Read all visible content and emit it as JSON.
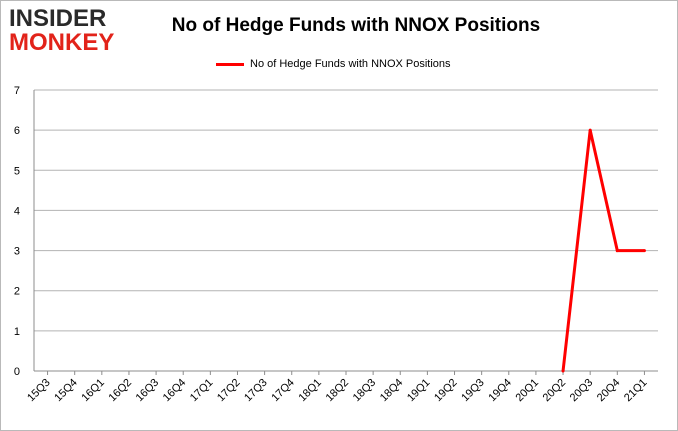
{
  "logo": {
    "line1": "INSIDER",
    "line2": "MONKEY"
  },
  "chart_data": {
    "type": "line",
    "title": "No of Hedge Funds with NNOX Positions",
    "xlabel": "",
    "ylabel": "",
    "categories": [
      "15Q3",
      "15Q4",
      "16Q1",
      "16Q2",
      "16Q3",
      "16Q4",
      "17Q1",
      "17Q2",
      "17Q3",
      "17Q4",
      "18Q1",
      "18Q2",
      "18Q3",
      "18Q4",
      "19Q1",
      "19Q2",
      "19Q3",
      "19Q4",
      "20Q1",
      "20Q2",
      "20Q3",
      "20Q4",
      "21Q1"
    ],
    "series": [
      {
        "name": "No of Hedge Funds with NNOX Positions",
        "color": "#ff0000",
        "values": [
          null,
          null,
          null,
          null,
          null,
          null,
          null,
          null,
          null,
          null,
          null,
          null,
          null,
          null,
          null,
          null,
          null,
          null,
          null,
          0,
          6,
          3,
          3
        ]
      }
    ],
    "ylim": [
      0,
      7
    ],
    "yticks": [
      0,
      1,
      2,
      3,
      4,
      5,
      6,
      7
    ],
    "grid": true,
    "legend": "top-center"
  }
}
